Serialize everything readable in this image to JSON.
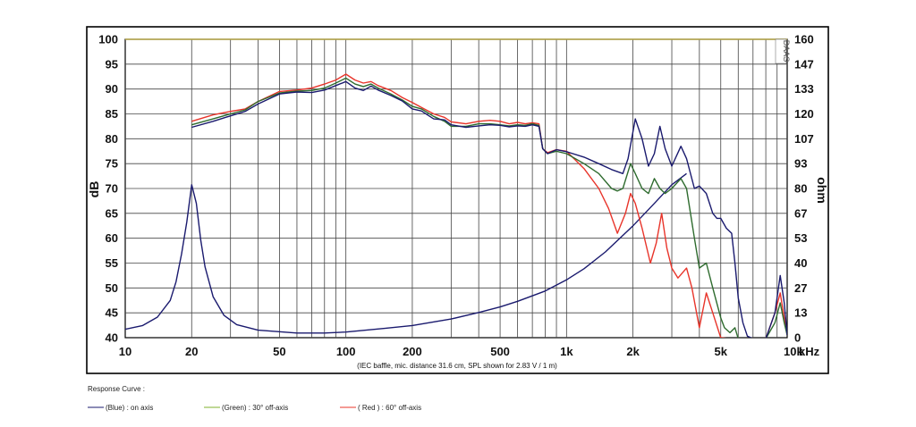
{
  "chart_data": {
    "type": "line",
    "caption": "(IEC baffle, mic. distance 31.6 cm, SPL shown for 2.83 V / 1 m)",
    "logo_text": "DAAS",
    "y_left": {
      "label": "dB",
      "min": 40,
      "max": 100,
      "ticks": [
        "40",
        "45",
        "50",
        "55",
        "60",
        "65",
        "70",
        "75",
        "80",
        "85",
        "90",
        "95",
        "100"
      ]
    },
    "y_right": {
      "label": "ohm",
      "min": 0,
      "max": 160,
      "ticks": [
        "0",
        "13",
        "27",
        "40",
        "53",
        "67",
        "80",
        "93",
        "107",
        "120",
        "133",
        "147",
        "160"
      ]
    },
    "x": {
      "scale": "log",
      "min": 10,
      "max": 10000,
      "unit_label": "kHz",
      "ticks": [
        {
          "v": 10,
          "label": "10"
        },
        {
          "v": 20,
          "label": "20"
        },
        {
          "v": 50,
          "label": "50"
        },
        {
          "v": 100,
          "label": "100"
        },
        {
          "v": 200,
          "label": "200"
        },
        {
          "v": 500,
          "label": "500"
        },
        {
          "v": 1000,
          "label": "1k"
        },
        {
          "v": 2000,
          "label": "2k"
        },
        {
          "v": 5000,
          "label": "5k"
        },
        {
          "v": 10000,
          "label": "10k"
        }
      ]
    },
    "grid": true,
    "legend": {
      "title": "Response Curve :",
      "entries": [
        {
          "text": "(Blue)  : on axis",
          "color": "#1a1a6e"
        },
        {
          "text": "(Green) : 30° off-axis",
          "color": "#7fb22e"
        },
        {
          "text": "( Red ) : 60° off-axis",
          "color": "#e8342a"
        }
      ]
    },
    "series": [
      {
        "name": "(Blue) : on axis",
        "color": "#1a1a6e",
        "axis": "left",
        "points": [
          [
            20,
            82.3
          ],
          [
            25,
            83.5
          ],
          [
            30,
            84.6
          ],
          [
            35,
            85.5
          ],
          [
            40,
            87
          ],
          [
            50,
            89
          ],
          [
            60,
            89.4
          ],
          [
            70,
            89.3
          ],
          [
            80,
            89.8
          ],
          [
            90,
            90.7
          ],
          [
            100,
            91.5
          ],
          [
            110,
            90.2
          ],
          [
            120,
            89.7
          ],
          [
            130,
            90.6
          ],
          [
            140,
            89.8
          ],
          [
            160,
            88.7
          ],
          [
            180,
            87.6
          ],
          [
            200,
            86
          ],
          [
            220,
            85.6
          ],
          [
            250,
            84
          ],
          [
            280,
            83.8
          ],
          [
            300,
            82.8
          ],
          [
            350,
            82.3
          ],
          [
            400,
            82.6
          ],
          [
            450,
            82.8
          ],
          [
            500,
            82.7
          ],
          [
            550,
            82.4
          ],
          [
            600,
            82.6
          ],
          [
            650,
            82.5
          ],
          [
            700,
            82.8
          ],
          [
            750,
            82.5
          ],
          [
            780,
            78
          ],
          [
            820,
            77
          ],
          [
            900,
            77.8
          ],
          [
            1000,
            77.4
          ],
          [
            1200,
            76.3
          ],
          [
            1400,
            75
          ],
          [
            1600,
            73.8
          ],
          [
            1800,
            73
          ],
          [
            1900,
            76
          ],
          [
            2050,
            84
          ],
          [
            2200,
            80
          ],
          [
            2350,
            74.5
          ],
          [
            2500,
            77
          ],
          [
            2650,
            82.5
          ],
          [
            2800,
            78
          ],
          [
            3000,
            74.5
          ],
          [
            3300,
            78.5
          ],
          [
            3500,
            76
          ],
          [
            3800,
            70
          ],
          [
            4000,
            70.5
          ],
          [
            4300,
            69
          ],
          [
            4600,
            65
          ],
          [
            4800,
            64
          ],
          [
            5000,
            64
          ],
          [
            5300,
            62
          ],
          [
            5600,
            61
          ],
          [
            5800,
            55
          ],
          [
            6000,
            48
          ],
          [
            6300,
            43
          ],
          [
            6600,
            40.3
          ],
          [
            7000,
            39.8
          ],
          [
            8000,
            39.8
          ],
          [
            8800,
            45
          ],
          [
            9300,
            52.5
          ],
          [
            9700,
            47
          ],
          [
            10000,
            40.5
          ]
        ]
      },
      {
        "name": "(Green) : 30° off-axis",
        "color": "#2e6b2e",
        "axis": "left",
        "points": [
          [
            20,
            82.8
          ],
          [
            25,
            84
          ],
          [
            30,
            85
          ],
          [
            35,
            85.8
          ],
          [
            40,
            87.5
          ],
          [
            50,
            89.2
          ],
          [
            60,
            89.6
          ],
          [
            70,
            89.7
          ],
          [
            80,
            90.2
          ],
          [
            90,
            91.2
          ],
          [
            100,
            92.2
          ],
          [
            110,
            91
          ],
          [
            120,
            90.5
          ],
          [
            130,
            91
          ],
          [
            140,
            90.2
          ],
          [
            160,
            89
          ],
          [
            180,
            87.8
          ],
          [
            200,
            86.5
          ],
          [
            220,
            86
          ],
          [
            250,
            84.5
          ],
          [
            280,
            83.5
          ],
          [
            300,
            82.5
          ],
          [
            350,
            82.5
          ],
          [
            400,
            83
          ],
          [
            450,
            83
          ],
          [
            500,
            82.8
          ],
          [
            550,
            82.6
          ],
          [
            600,
            82.8
          ],
          [
            650,
            82.7
          ],
          [
            700,
            83
          ],
          [
            750,
            82.7
          ],
          [
            780,
            78
          ],
          [
            820,
            77
          ],
          [
            900,
            77.5
          ],
          [
            1000,
            77
          ],
          [
            1200,
            75
          ],
          [
            1400,
            73
          ],
          [
            1600,
            70
          ],
          [
            1700,
            69.5
          ],
          [
            1800,
            70
          ],
          [
            1950,
            75
          ],
          [
            2050,
            73
          ],
          [
            2200,
            70
          ],
          [
            2350,
            69
          ],
          [
            2500,
            72
          ],
          [
            2650,
            70
          ],
          [
            2800,
            69
          ],
          [
            3000,
            70
          ],
          [
            3300,
            72
          ],
          [
            3500,
            70
          ],
          [
            3800,
            60
          ],
          [
            4000,
            54
          ],
          [
            4300,
            55
          ],
          [
            4600,
            50
          ],
          [
            5000,
            44
          ],
          [
            5200,
            42
          ],
          [
            5500,
            41
          ],
          [
            5800,
            42
          ],
          [
            6000,
            39.8
          ],
          [
            8000,
            39.8
          ],
          [
            8800,
            43
          ],
          [
            9300,
            47
          ],
          [
            9700,
            43
          ],
          [
            10000,
            40.5
          ]
        ]
      },
      {
        "name": "( Red ) : 60° off-axis",
        "color": "#e8342a",
        "axis": "left",
        "points": [
          [
            20,
            83.5
          ],
          [
            25,
            84.8
          ],
          [
            30,
            85.5
          ],
          [
            35,
            86
          ],
          [
            40,
            87.5
          ],
          [
            50,
            89.5
          ],
          [
            60,
            89.8
          ],
          [
            70,
            90.2
          ],
          [
            80,
            91
          ],
          [
            90,
            91.8
          ],
          [
            100,
            93
          ],
          [
            110,
            91.8
          ],
          [
            120,
            91.2
          ],
          [
            130,
            91.5
          ],
          [
            140,
            90.7
          ],
          [
            160,
            89.7
          ],
          [
            180,
            88.3
          ],
          [
            200,
            87.3
          ],
          [
            220,
            86.3
          ],
          [
            250,
            85
          ],
          [
            280,
            84.3
          ],
          [
            300,
            83.4
          ],
          [
            350,
            83
          ],
          [
            400,
            83.5
          ],
          [
            450,
            83.7
          ],
          [
            500,
            83.5
          ],
          [
            550,
            83
          ],
          [
            600,
            83.3
          ],
          [
            650,
            83
          ],
          [
            700,
            83.2
          ],
          [
            750,
            83
          ],
          [
            780,
            78
          ],
          [
            820,
            77.2
          ],
          [
            900,
            77.8
          ],
          [
            1000,
            77.5
          ],
          [
            1200,
            74
          ],
          [
            1400,
            70
          ],
          [
            1550,
            66
          ],
          [
            1700,
            61
          ],
          [
            1850,
            65
          ],
          [
            1950,
            69
          ],
          [
            2050,
            67
          ],
          [
            2200,
            62
          ],
          [
            2400,
            55
          ],
          [
            2550,
            59
          ],
          [
            2700,
            65
          ],
          [
            2850,
            58
          ],
          [
            3000,
            54
          ],
          [
            3200,
            52
          ],
          [
            3500,
            54
          ],
          [
            3700,
            50
          ],
          [
            4000,
            42
          ],
          [
            4300,
            49
          ],
          [
            4600,
            45
          ],
          [
            5000,
            40
          ],
          [
            5500,
            39.8
          ],
          [
            8000,
            39.8
          ],
          [
            8800,
            45
          ],
          [
            9300,
            49
          ],
          [
            9700,
            44
          ],
          [
            10000,
            40.5
          ]
        ]
      },
      {
        "name": "impedance",
        "color": "#1a1a6e",
        "axis": "right",
        "points": [
          [
            10,
            4.5
          ],
          [
            12,
            6.5
          ],
          [
            14,
            11
          ],
          [
            16,
            20
          ],
          [
            17,
            30
          ],
          [
            18,
            45
          ],
          [
            19,
            62
          ],
          [
            20,
            82
          ],
          [
            21,
            72
          ],
          [
            22,
            52
          ],
          [
            23,
            38
          ],
          [
            25,
            22
          ],
          [
            28,
            12
          ],
          [
            32,
            7
          ],
          [
            40,
            4
          ],
          [
            60,
            2.5
          ],
          [
            80,
            2.5
          ],
          [
            100,
            3
          ],
          [
            150,
            5
          ],
          [
            200,
            6.5
          ],
          [
            300,
            10
          ],
          [
            400,
            13.5
          ],
          [
            500,
            16.5
          ],
          [
            600,
            19.5
          ],
          [
            800,
            25
          ],
          [
            1000,
            31
          ],
          [
            1200,
            37
          ],
          [
            1500,
            46
          ],
          [
            2000,
            60
          ],
          [
            2500,
            72
          ],
          [
            3000,
            82
          ],
          [
            3500,
            88
          ]
        ]
      }
    ]
  }
}
